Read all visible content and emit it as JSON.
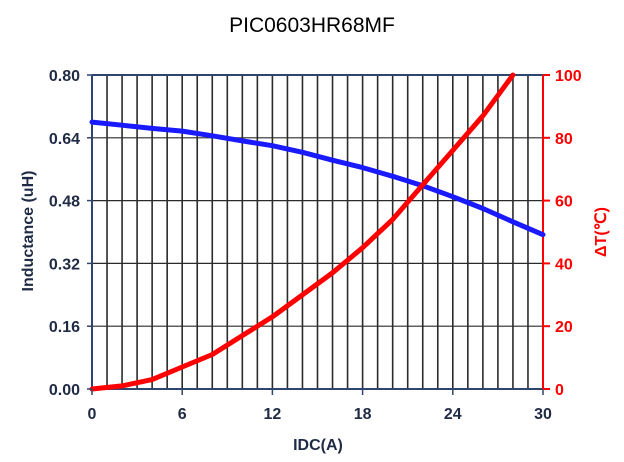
{
  "chart_data": {
    "type": "line",
    "title": "PIC0603HR68MF",
    "xlabel": "IDC(A)",
    "ylabel_left": "Inductance (uH)",
    "ylabel_right": "ΔT(℃)",
    "xlim": [
      0,
      30
    ],
    "ylim_left": [
      0,
      0.8
    ],
    "ylim_right": [
      0,
      100
    ],
    "x_ticks": [
      "0",
      "6",
      "12",
      "18",
      "24",
      "30"
    ],
    "y_left_ticks": [
      "0.00",
      "0.16",
      "0.32",
      "0.48",
      "0.64",
      "0.80"
    ],
    "y_right_ticks": [
      "0",
      "20",
      "40",
      "60",
      "80",
      "100"
    ],
    "grid": true,
    "series": [
      {
        "axis": "left",
        "color": "#1a1aff",
        "x": [
          0,
          2,
          4,
          6,
          8,
          10,
          12,
          14,
          16,
          18,
          20,
          22,
          24,
          26,
          28,
          30
        ],
        "values": [
          0.68,
          0.672,
          0.664,
          0.657,
          0.645,
          0.632,
          0.62,
          0.603,
          0.583,
          0.564,
          0.542,
          0.518,
          0.49,
          0.46,
          0.426,
          0.393
        ]
      },
      {
        "axis": "right",
        "color": "#ff0000",
        "x": [
          0,
          2,
          4,
          6,
          8,
          10,
          12,
          14,
          16,
          18,
          20,
          22,
          24,
          26,
          28
        ],
        "values": [
          0,
          1,
          3,
          7,
          11,
          17,
          23,
          30,
          37,
          45,
          54,
          65,
          76,
          87,
          100
        ]
      }
    ]
  }
}
